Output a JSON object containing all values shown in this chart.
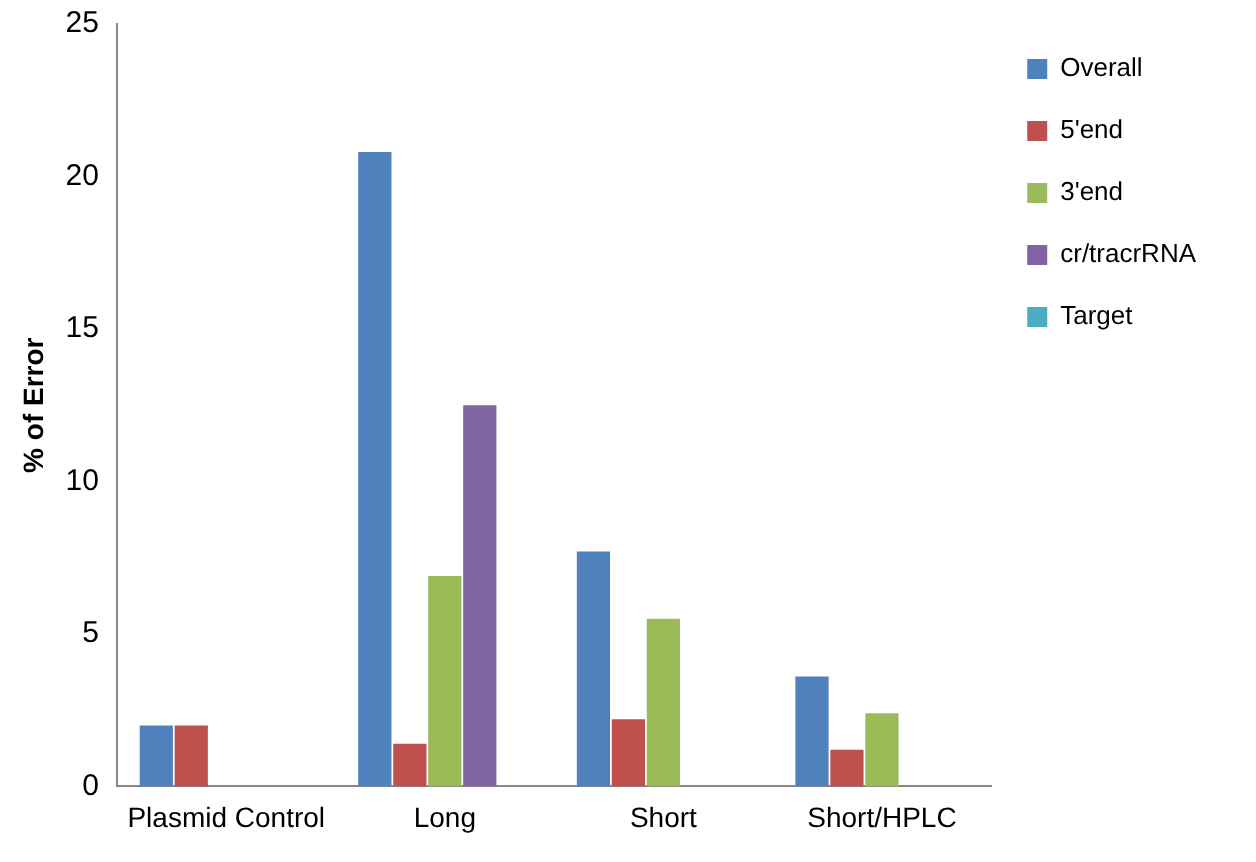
{
  "chart_data": {
    "type": "bar",
    "ylabel": "% of Error",
    "categories": [
      "Plasmid Control",
      "Long",
      "Short",
      "Short/HPLC"
    ],
    "series": [
      {
        "name": "Overall",
        "color": "#4f81bd",
        "values": [
          2.0,
          20.8,
          7.7,
          3.6
        ]
      },
      {
        "name": "5'end",
        "color": "#c0504d",
        "values": [
          2.0,
          1.4,
          2.2,
          1.2
        ]
      },
      {
        "name": "3'end",
        "color": "#9bbb59",
        "values": [
          0,
          6.9,
          5.5,
          2.4
        ]
      },
      {
        "name": "cr/tracrRNA",
        "color": "#8064a2",
        "values": [
          0,
          12.5,
          0,
          0
        ]
      },
      {
        "name": "Target",
        "color": "#4bacc6",
        "values": [
          0,
          0,
          0,
          0
        ]
      }
    ],
    "ylim": [
      0,
      25
    ],
    "yticks": [
      0,
      5,
      10,
      15,
      20,
      25
    ],
    "grid": false,
    "legend": "right"
  }
}
